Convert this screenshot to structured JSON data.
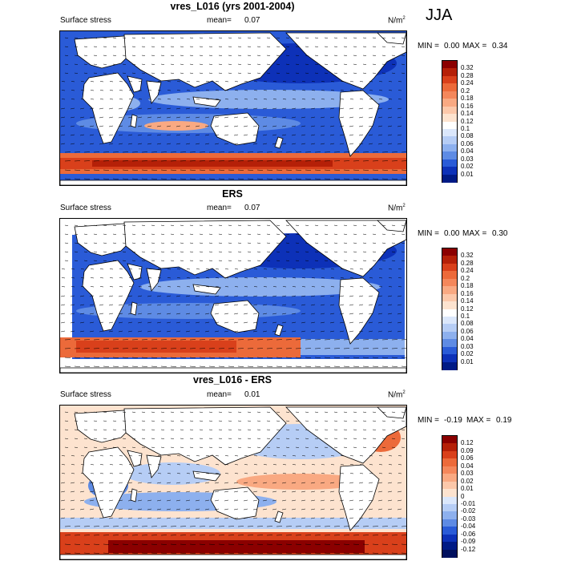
{
  "season": "JJA",
  "colors": {
    "ocean_blue": "#2a5bd7",
    "land": "#ffffff",
    "coast": "#000000",
    "warm": "#d9401b"
  },
  "panels": [
    {
      "title": "vres_L016 (yrs 2001-2004)",
      "left_label": "Surface stress",
      "mean_label": "mean=",
      "mean_value": "0.07",
      "units": "N/m",
      "units_sup": "2",
      "min_label": "MIN =",
      "min_value": "0.00",
      "max_label": "MAX =",
      "max_value": "0.34",
      "colorbar_labels": [
        "0.32",
        "0.28",
        "0.24",
        "0.2",
        "0.18",
        "0.16",
        "0.14",
        "0.12",
        "0.1",
        "0.08",
        "0.06",
        "0.04",
        "0.03",
        "0.02",
        "0.01"
      ],
      "colorbar_colors": [
        "#8b0000",
        "#b52008",
        "#d9401b",
        "#ec6a3a",
        "#f4875b",
        "#f9a982",
        "#fcc8aa",
        "#fde3cf",
        "#ffffff",
        "#dbe7fb",
        "#b6cdf5",
        "#8db0ee",
        "#5e8be4",
        "#2a5bd7",
        "#0d31b8",
        "#001a85"
      ]
    },
    {
      "title": "ERS",
      "left_label": "Surface stress",
      "mean_label": "mean=",
      "mean_value": "0.07",
      "units": "N/m",
      "units_sup": "2",
      "min_label": "MIN =",
      "min_value": "0.00",
      "max_label": "MAX =",
      "max_value": "0.30",
      "colorbar_labels": [
        "0.32",
        "0.28",
        "0.24",
        "0.2",
        "0.18",
        "0.16",
        "0.14",
        "0.12",
        "0.1",
        "0.08",
        "0.06",
        "0.04",
        "0.03",
        "0.02",
        "0.01"
      ],
      "colorbar_colors": [
        "#8b0000",
        "#b52008",
        "#d9401b",
        "#ec6a3a",
        "#f4875b",
        "#f9a982",
        "#fcc8aa",
        "#fde3cf",
        "#ffffff",
        "#dbe7fb",
        "#b6cdf5",
        "#8db0ee",
        "#5e8be4",
        "#2a5bd7",
        "#0d31b8",
        "#001a85"
      ]
    },
    {
      "title": "vres_L016 - ERS",
      "left_label": "Surface stress",
      "mean_label": "mean=",
      "mean_value": "0.01",
      "units": "N/m",
      "units_sup": "2",
      "min_label": "MIN =",
      "min_value": "-0.19",
      "max_label": "MAX =",
      "max_value": "0.19",
      "colorbar_labels": [
        "0.12",
        "0.09",
        "0.06",
        "0.04",
        "0.03",
        "0.02",
        "0.01",
        "0",
        "-0.01",
        "-0.02",
        "-0.03",
        "-0.04",
        "-0.06",
        "-0.09",
        "-0.12"
      ],
      "colorbar_colors": [
        "#8b0000",
        "#b52008",
        "#d9401b",
        "#ec6a3a",
        "#f4875b",
        "#f9a982",
        "#fcc8aa",
        "#fde3cf",
        "#dbe7fb",
        "#b6cdf5",
        "#8db0ee",
        "#5e8be4",
        "#2a5bd7",
        "#0d31b8",
        "#001a85",
        "#00105e"
      ]
    }
  ]
}
